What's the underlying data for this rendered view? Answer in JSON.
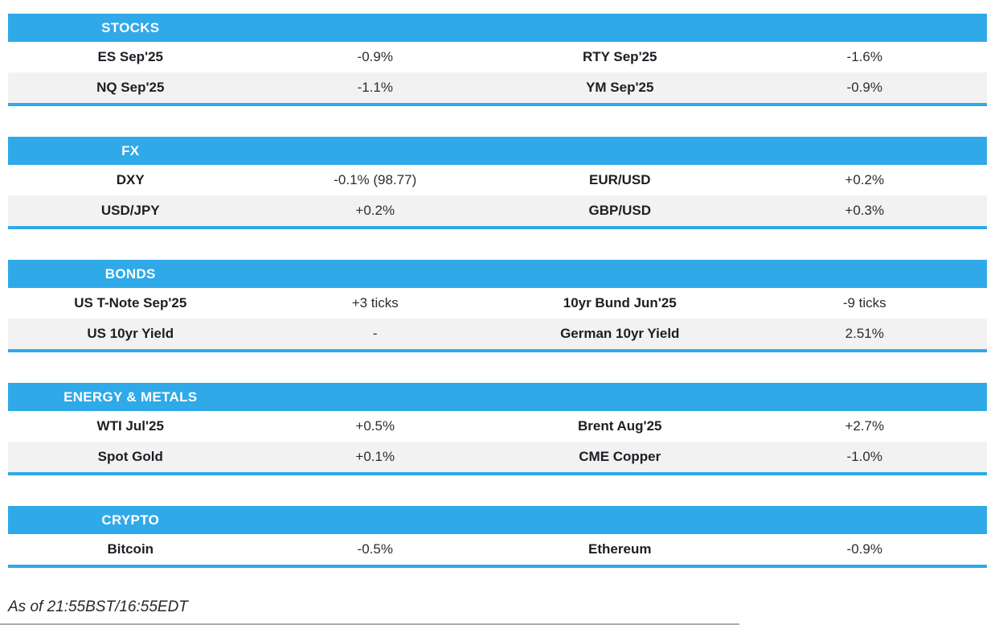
{
  "theme": {
    "accent_blue": "#2FA9E8",
    "row_alt_gray": "#F2F2F2",
    "header_text": "#FFFFFF",
    "body_text": "#1F2328"
  },
  "sections": [
    {
      "id": "stocks",
      "title": "STOCKS",
      "rows": [
        [
          "ES Sep'25",
          "-0.9%",
          "RTY Sep'25",
          "-1.6%"
        ],
        [
          "NQ Sep'25",
          "-1.1%",
          "YM Sep'25",
          "-0.9%"
        ]
      ]
    },
    {
      "id": "fx",
      "title": "FX",
      "rows": [
        [
          "DXY",
          "-0.1% (98.77)",
          "EUR/USD",
          "+0.2%"
        ],
        [
          "USD/JPY",
          "+0.2%",
          "GBP/USD",
          "+0.3%"
        ]
      ]
    },
    {
      "id": "bonds",
      "title": "BONDS",
      "rows": [
        [
          "US T-Note Sep'25",
          "+3 ticks",
          "10yr Bund Jun'25",
          "-9 ticks"
        ],
        [
          "US 10yr Yield",
          "-",
          "German 10yr Yield",
          "2.51%"
        ]
      ]
    },
    {
      "id": "energy-metals",
      "title": "ENERGY & METALS",
      "rows": [
        [
          "WTI Jul'25",
          "+0.5%",
          "Brent Aug'25",
          "+2.7%"
        ],
        [
          "Spot Gold",
          "+0.1%",
          "CME Copper",
          "-1.0%"
        ]
      ]
    },
    {
      "id": "crypto",
      "title": "CRYPTO",
      "rows": [
        [
          "Bitcoin",
          "-0.5%",
          "Ethereum",
          "-0.9%"
        ]
      ]
    }
  ],
  "footer": {
    "as_of": "As of 21:55BST/16:55EDT"
  }
}
